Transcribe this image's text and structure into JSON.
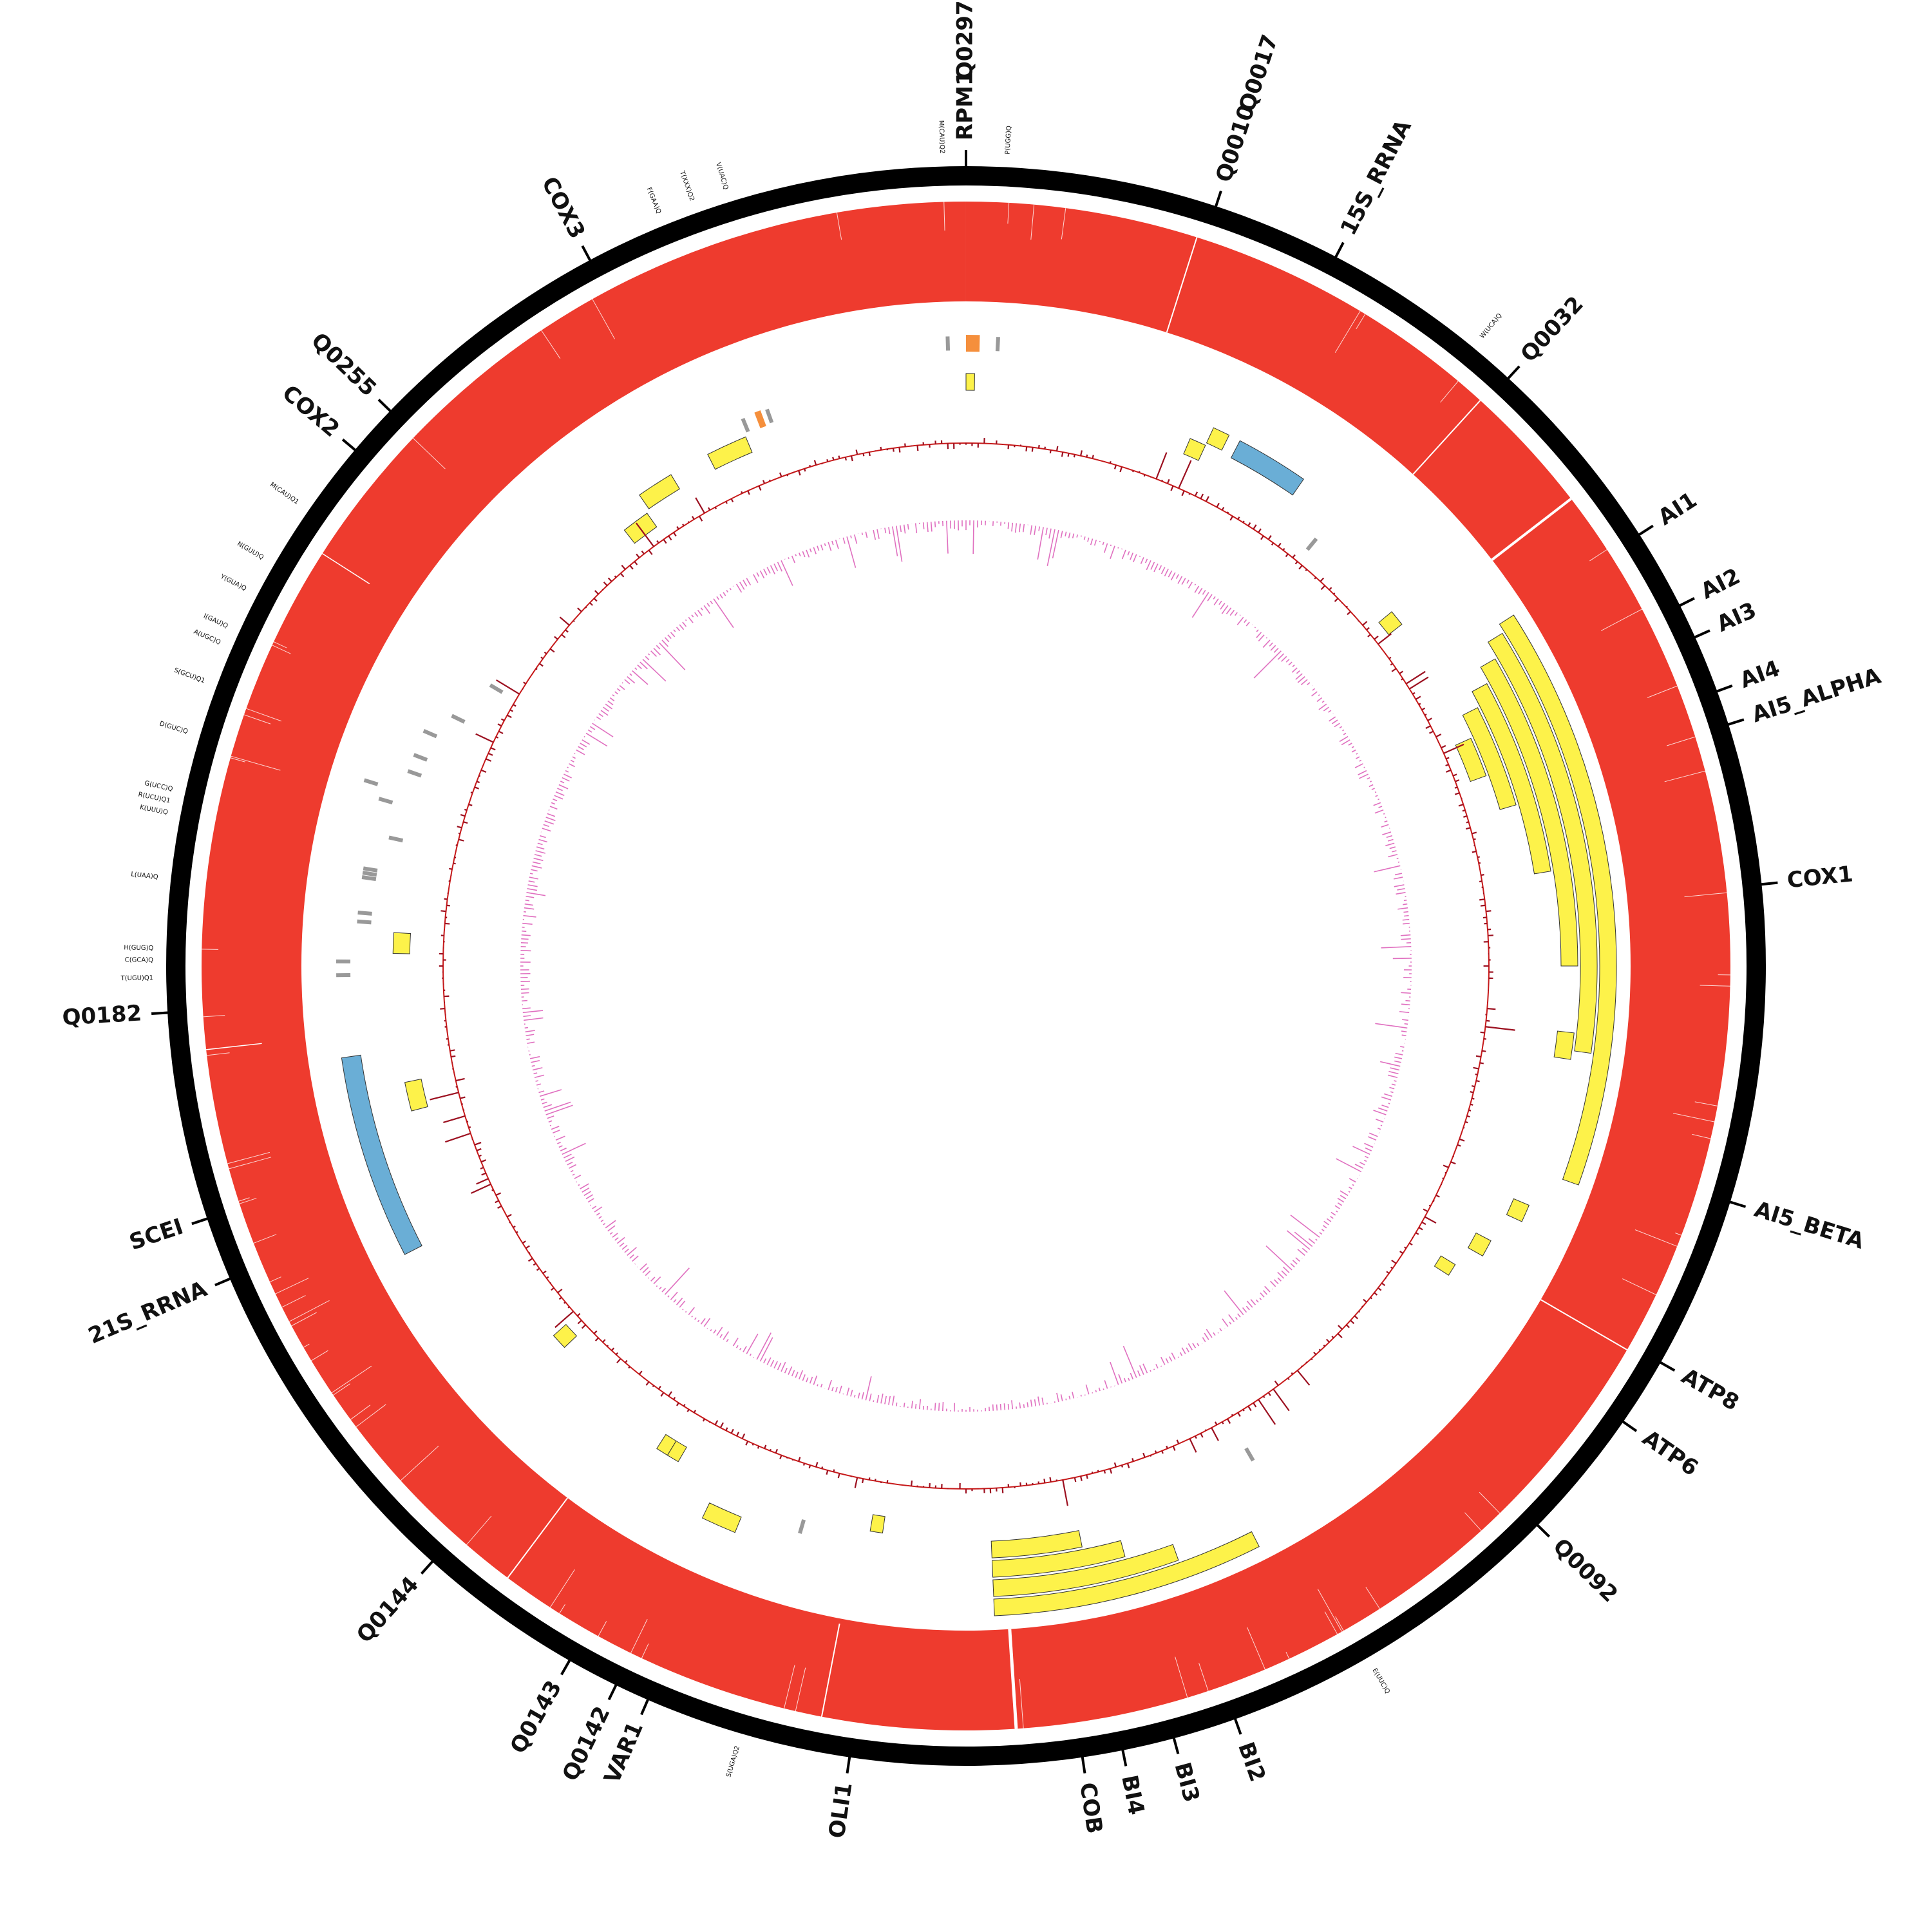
{
  "map": {
    "genome_length": 86000,
    "colors": {
      "backbone": "#000000",
      "coverage": "#ee3b2e",
      "gene_feature": "#fdf24a",
      "rrna_feature": "#6aaed6",
      "trna_feature": "#999999",
      "small_rna_feature": "#f58f3c",
      "gc_content": "#c81a1a",
      "gc_skew": "#e070c0"
    },
    "gene_labels": [
      {
        "text": "RPM1",
        "pos": 0
      },
      {
        "text": "Q0297",
        "pos": 0
      },
      {
        "text": "Q0010",
        "pos": 4350
      },
      {
        "text": "Q0017",
        "pos": 4350
      },
      {
        "text": "15S_RRNA",
        "pos": 6580
      },
      {
        "text": "Q0032",
        "pos": 10200
      },
      {
        "text": "AI1",
        "pos": 13700
      },
      {
        "text": "AI2",
        "pos": 15100
      },
      {
        "text": "AI3",
        "pos": 15700
      },
      {
        "text": "AI4",
        "pos": 16700
      },
      {
        "text": "AI5_ALPHA",
        "pos": 17300
      },
      {
        "text": "COX1",
        "pos": 20100
      },
      {
        "text": "AI5_BETA",
        "pos": 25600
      },
      {
        "text": "ATP8",
        "pos": 28600
      },
      {
        "text": "ATP6",
        "pos": 29800
      },
      {
        "text": "Q0092",
        "pos": 32100
      },
      {
        "text": "BI2",
        "pos": 38300
      },
      {
        "text": "BI3",
        "pos": 39400
      },
      {
        "text": "BI4",
        "pos": 40300
      },
      {
        "text": "COB",
        "pos": 41000
      },
      {
        "text": "OLI1",
        "pos": 45000
      },
      {
        "text": "VAR1",
        "pos": 48600
      },
      {
        "text": "Q0142",
        "pos": 49200
      },
      {
        "text": "Q0143",
        "pos": 50100
      },
      {
        "text": "Q0144",
        "pos": 53000
      },
      {
        "text": "21S_RRNA",
        "pos": 59000
      },
      {
        "text": "SCEI",
        "pos": 60100
      },
      {
        "text": "Q0182",
        "pos": 63700
      },
      {
        "text": "COX2",
        "pos": 74100
      },
      {
        "text": "Q0255",
        "pos": 75000
      },
      {
        "text": "COX3",
        "pos": 79300
      }
    ],
    "trna_labels": [
      {
        "text": "M(CAU)Q2",
        "pos": 85600
      },
      {
        "text": "P(UGG)Q",
        "pos": 700
      },
      {
        "text": "W(UCA)Q",
        "pos": 9400
      },
      {
        "text": "E(UUC)Q",
        "pos": 35800
      },
      {
        "text": "S(UGA)Q2",
        "pos": 46900
      },
      {
        "text": "T(UGU)Q1",
        "pos": 64300
      },
      {
        "text": "C(GCA)Q",
        "pos": 64600
      },
      {
        "text": "H(GUG)Q",
        "pos": 64800
      },
      {
        "text": "L(UAA)Q",
        "pos": 66000
      },
      {
        "text": "K(UUU)Q",
        "pos": 67100
      },
      {
        "text": "R(UCU)Q1",
        "pos": 67300
      },
      {
        "text": "G(UCC)Q",
        "pos": 67500
      },
      {
        "text": "D(GUC)Q",
        "pos": 68500
      },
      {
        "text": "S(GCU)Q1",
        "pos": 69400
      },
      {
        "text": "A(UGC)Q",
        "pos": 70100
      },
      {
        "text": "I(GAU)Q",
        "pos": 70400
      },
      {
        "text": "Y(GUA)Q",
        "pos": 71100
      },
      {
        "text": "N(GUU)Q",
        "pos": 71700
      },
      {
        "text": "M(CAU)Q1",
        "pos": 72800
      },
      {
        "text": "F(GAA)Q",
        "pos": 80700
      },
      {
        "text": "T(XXX)Q2",
        "pos": 81300
      },
      {
        "text": "V(UAC)Q",
        "pos": 81900
      }
    ],
    "gene_features": [
      {
        "start": 13700,
        "end": 26200,
        "level": 0
      },
      {
        "start": 13900,
        "end": 23400,
        "level": 1
      },
      {
        "start": 14300,
        "end": 21500,
        "level": 2
      },
      {
        "start": 14700,
        "end": 19300,
        "level": 3
      },
      {
        "start": 15100,
        "end": 17600,
        "level": 4
      },
      {
        "start": 15700,
        "end": 16700,
        "level": 5
      },
      {
        "start": 23000,
        "end": 23600,
        "level": 2
      },
      {
        "start": 27000,
        "end": 27400,
        "level": 2
      },
      {
        "start": 28100,
        "end": 28500,
        "level": 3
      },
      {
        "start": 29000,
        "end": 29300,
        "level": 4
      },
      {
        "start": 12000,
        "end": 12400,
        "level": 5
      },
      {
        "start": 36600,
        "end": 42400,
        "level": 0
      },
      {
        "start": 38300,
        "end": 42400,
        "level": 1
      },
      {
        "start": 39400,
        "end": 42400,
        "level": 2
      },
      {
        "start": 40300,
        "end": 42400,
        "level": 3
      },
      {
        "start": 45000,
        "end": 45300,
        "level": 4
      },
      {
        "start": 48300,
        "end": 49100,
        "level": 2
      },
      {
        "start": 50200,
        "end": 50500,
        "level": 4
      },
      {
        "start": 50500,
        "end": 50800,
        "level": 4
      },
      {
        "start": 54100,
        "end": 54500,
        "level": 5
      },
      {
        "start": 61000,
        "end": 61700,
        "level": 4
      },
      {
        "start": 64800,
        "end": 65300,
        "level": 4
      },
      {
        "start": 76900,
        "end": 77600,
        "level": 5
      },
      {
        "start": 77700,
        "end": 78600,
        "level": 4
      },
      {
        "start": 79600,
        "end": 80600,
        "level": 4
      },
      {
        "start": 0,
        "end": 200,
        "level": 3
      },
      {
        "start": 5500,
        "end": 5900,
        "level": 4
      },
      {
        "start": 5900,
        "end": 6300,
        "level": 3
      }
    ],
    "rrna_features": [
      {
        "start": 6580,
        "end": 8300,
        "level": 3
      },
      {
        "start": 58000,
        "end": 62500,
        "level": 1
      }
    ],
    "trna_features": [
      {
        "pos": 85600,
        "level": 1
      },
      {
        "pos": 700,
        "level": 1
      },
      {
        "pos": 9400,
        "level": 5
      },
      {
        "pos": 35800,
        "level": 4
      },
      {
        "pos": 46900,
        "level": 3
      },
      {
        "pos": 64300,
        "level": 1
      },
      {
        "pos": 64600,
        "level": 1
      },
      {
        "pos": 65500,
        "level": 2
      },
      {
        "pos": 65700,
        "level": 2
      },
      {
        "pos": 66500,
        "level": 2
      },
      {
        "pos": 66600,
        "level": 2
      },
      {
        "pos": 66700,
        "level": 2
      },
      {
        "pos": 67500,
        "level": 3
      },
      {
        "pos": 68300,
        "level": 2
      },
      {
        "pos": 68600,
        "level": 1
      },
      {
        "pos": 69100,
        "level": 3
      },
      {
        "pos": 69500,
        "level": 3
      },
      {
        "pos": 70100,
        "level": 3
      },
      {
        "pos": 70700,
        "level": 4
      },
      {
        "pos": 71800,
        "level": 5
      },
      {
        "pos": 80700,
        "level": 3
      },
      {
        "pos": 81300,
        "level": 3
      }
    ],
    "small_rna_features": [
      {
        "start": 0,
        "end": 300,
        "level": 1
      },
      {
        "start": 81000,
        "end": 81150,
        "level": 3
      }
    ]
  }
}
